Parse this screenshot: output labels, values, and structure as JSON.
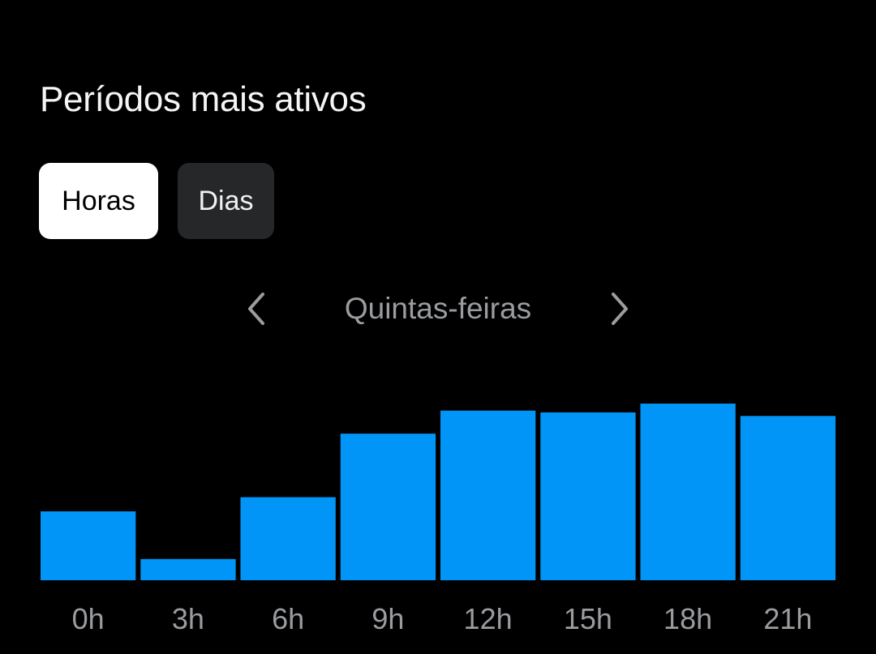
{
  "header": {
    "title": "Períodos mais ativos"
  },
  "toggles": {
    "hours_label": "Horas",
    "days_label": "Dias",
    "selected": "Horas"
  },
  "navigator": {
    "label": "Quintas-feiras",
    "prev_icon": "chevron-left-icon",
    "next_icon": "chevron-right-icon"
  },
  "colors": {
    "background": "#000000",
    "bar": "#0095f6",
    "label": "#9a9ca0",
    "toggle_active_bg": "#ffffff",
    "toggle_inactive_bg": "#262729"
  },
  "chart_data": {
    "type": "bar",
    "categories": [
      "0h",
      "3h",
      "6h",
      "9h",
      "12h",
      "15h",
      "18h",
      "21h"
    ],
    "values": [
      39,
      12,
      47,
      83,
      96,
      95,
      100,
      93
    ],
    "ylim": [
      0,
      100
    ],
    "grid": false,
    "legend": "none"
  }
}
